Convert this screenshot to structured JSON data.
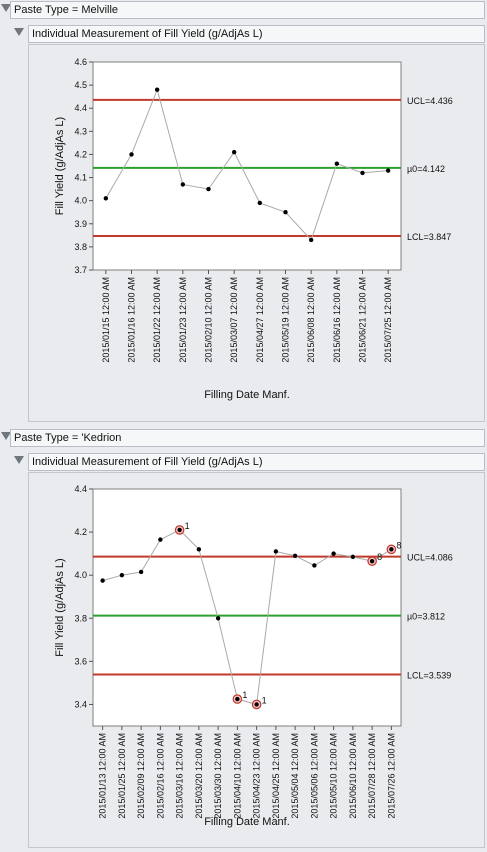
{
  "charts": [
    {
      "group_label": "Paste Type = Melville",
      "title": "Individual Measurement of Fill Yield (g/AdjAs L)"
    },
    {
      "group_label": "Paste Type = 'Kedrion",
      "title": "Individual Measurement of Fill Yield (g/AdjAs L)"
    }
  ],
  "chart_data": [
    {
      "type": "line",
      "title": "Individual Measurement of Fill Yield (g/AdjAs L)",
      "xlabel": "Filling Date Manf.",
      "ylabel": "Fill Yield (g/AdjAs L)",
      "ylim": [
        3.7,
        4.6
      ],
      "yticks": [
        "3.7",
        "3.8",
        "3.9",
        "4.0",
        "4.1",
        "4.2",
        "4.3",
        "4.4",
        "4.5",
        "4.6"
      ],
      "categories": [
        "2015/01/15 12:00 AM",
        "2015/01/16 12:00 AM",
        "2015/01/22 12:00 AM",
        "2015/01/23 12:00 AM",
        "2015/02/10 12:00 AM",
        "2015/03/07 12:00 AM",
        "2015/04/27 12:00 AM",
        "2015/05/19 12:00 AM",
        "2015/06/08 12:00 AM",
        "2015/06/16 12:00 AM",
        "2015/06/21 12:00 AM",
        "2015/07/25 12:00 AM"
      ],
      "values": [
        4.01,
        4.2,
        4.48,
        4.07,
        4.05,
        4.21,
        3.99,
        3.95,
        3.83,
        4.16,
        4.12,
        4.13
      ],
      "flags": [
        "",
        "",
        "",
        "",
        "",
        "",
        "",
        "",
        "",
        "",
        "",
        ""
      ],
      "ucl": 4.436,
      "center": 4.142,
      "lcl": 3.847,
      "ucl_label": "UCL=4.436",
      "center_label": "µ0=4.142",
      "lcl_label": "LCL=3.847",
      "colors": {
        "limit": "#c0392b",
        "center": "#2ca02c",
        "line": "#a9a9a9",
        "point": "#000000",
        "flag": "#c0392b"
      }
    },
    {
      "type": "line",
      "title": "Individual Measurement of Fill Yield (g/AdjAs L)",
      "xlabel": "Filling Date Manf.",
      "ylabel": "Fill Yield (g/AdjAs L)",
      "ylim": [
        3.3,
        4.4
      ],
      "yticks": [
        "3.4",
        "3.6",
        "3.8",
        "4.0",
        "4.2",
        "4.4"
      ],
      "categories": [
        "2015/01/13 12:00 AM",
        "2015/01/25 12:00 AM",
        "2015/02/09 12:00 AM",
        "2015/02/16 12:00 AM",
        "2015/03/16 12:00 AM",
        "2015/03/20 12:00 AM",
        "2015/03/30 12:00 AM",
        "2015/04/10 12:00 AM",
        "2015/04/23 12:00 AM",
        "2015/04/25 12:00 AM",
        "2015/05/04 12:00 AM",
        "2015/05/06 12:00 AM",
        "2015/05/10 12:00 AM",
        "2015/06/10 12:00 AM",
        "2015/07/28 12:00 AM",
        "2015/07/26 12:00 AM"
      ],
      "values": [
        3.975,
        4.0,
        4.015,
        4.165,
        4.21,
        4.12,
        3.8,
        3.425,
        3.4,
        4.11,
        4.09,
        4.045,
        4.1,
        4.085,
        4.065,
        4.12
      ],
      "flags": [
        "",
        "",
        "",
        "",
        "1",
        "",
        "",
        "1",
        "1",
        "",
        "",
        "",
        "",
        "",
        "8",
        "8"
      ],
      "ucl": 4.086,
      "center": 3.812,
      "lcl": 3.539,
      "ucl_label": "UCL=4.086",
      "center_label": "µ0=3.812",
      "lcl_label": "LCL=3.539",
      "colors": {
        "limit": "#c0392b",
        "center": "#2ca02c",
        "line": "#a9a9a9",
        "point": "#000000",
        "flag": "#c0392b"
      }
    }
  ]
}
